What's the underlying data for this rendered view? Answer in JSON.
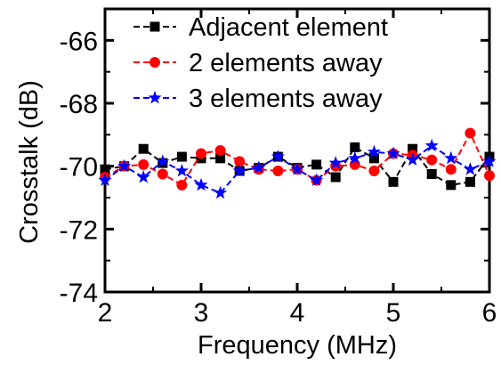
{
  "chart_data": {
    "type": "line",
    "xlabel": "Frequency (MHz)",
    "ylabel": "Crosstalk (dB)",
    "xlim": [
      2,
      6
    ],
    "ylim": [
      -74,
      -65
    ],
    "xticks": [
      2,
      3,
      4,
      5,
      6
    ],
    "yticks": [
      -74,
      -72,
      -70,
      -68,
      -66
    ],
    "x": [
      2.0,
      2.2,
      2.4,
      2.6,
      2.8,
      3.0,
      3.2,
      3.4,
      3.6,
      3.8,
      4.0,
      4.2,
      4.4,
      4.6,
      4.8,
      5.0,
      5.2,
      5.4,
      5.6,
      5.8,
      6.0
    ],
    "series": [
      {
        "name": "Adjacent element",
        "color": "#000000",
        "marker": "square",
        "line": "dashed",
        "values": [
          -70.1,
          -70.0,
          -69.45,
          -69.9,
          -69.7,
          -69.75,
          -69.75,
          -70.15,
          -70.05,
          -69.7,
          -70.05,
          -69.95,
          -70.35,
          -69.4,
          -69.75,
          -70.5,
          -69.45,
          -70.25,
          -70.6,
          -70.5,
          -69.7
        ]
      },
      {
        "name": "2 elements away",
        "color": "#ff0000",
        "marker": "circle",
        "line": "dashed",
        "values": [
          -70.35,
          -70.0,
          -69.95,
          -70.25,
          -70.6,
          -69.6,
          -69.5,
          -69.85,
          -70.1,
          -70.15,
          -70.1,
          -70.45,
          -70.0,
          -69.95,
          -70.15,
          -69.6,
          -69.65,
          -69.8,
          -70.1,
          -68.95,
          -70.3
        ]
      },
      {
        "name": "3 elements away",
        "color": "#0000ff",
        "marker": "star",
        "line": "dashed",
        "values": [
          -70.45,
          -70.0,
          -70.35,
          -69.85,
          -70.15,
          -70.6,
          -70.85,
          -70.15,
          -70.05,
          -69.7,
          -70.1,
          -70.45,
          -69.9,
          -69.75,
          -69.55,
          -69.6,
          -69.8,
          -69.35,
          -69.75,
          -70.1,
          -69.85
        ]
      }
    ],
    "legend_position": "top"
  }
}
